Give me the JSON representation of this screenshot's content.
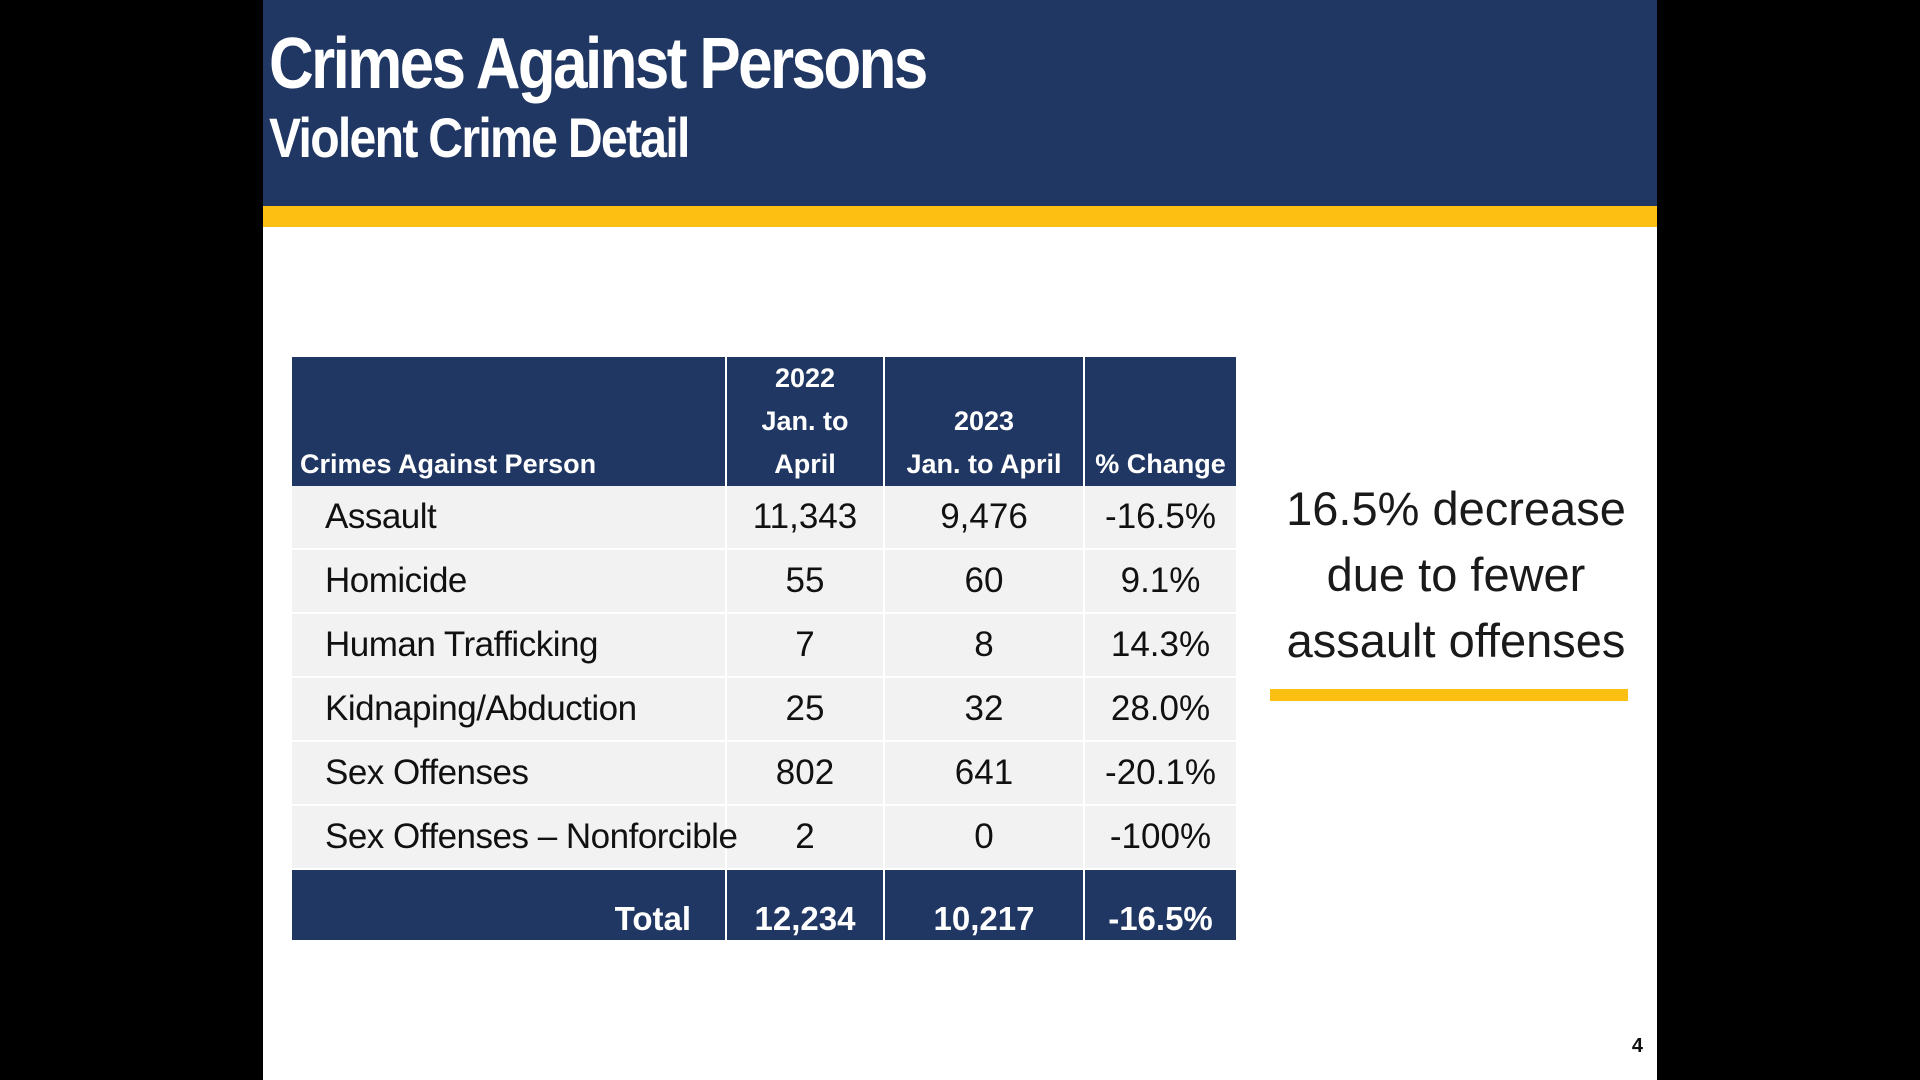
{
  "slide": {
    "title": "Crimes Against Persons",
    "subtitle": "Violent Crime Detail",
    "page_number": "4",
    "colors": {
      "navy": "#213763",
      "gold": "#fcbf12",
      "row_background": "#f2f2f2"
    }
  },
  "table": {
    "headers": {
      "category": "Crimes Against Person",
      "year_2022": "2022",
      "period_2022_line1": "Jan. to",
      "period_2022_line2": "April",
      "year_2023": "2023",
      "period_2023": "Jan. to April",
      "change": "% Change"
    },
    "rows": [
      {
        "label": "Assault",
        "y2022": "11,343",
        "y2023": "9,476",
        "change": "-16.5%"
      },
      {
        "label": "Homicide",
        "y2022": "55",
        "y2023": "60",
        "change": "9.1%"
      },
      {
        "label": "Human Trafficking",
        "y2022": "7",
        "y2023": "8",
        "change": "14.3%"
      },
      {
        "label": "Kidnaping/Abduction",
        "y2022": "25",
        "y2023": "32",
        "change": "28.0%"
      },
      {
        "label": "Sex Offenses",
        "y2022": "802",
        "y2023": "641",
        "change": "-20.1%"
      },
      {
        "label": "Sex Offenses – Nonforcible",
        "y2022": "2",
        "y2023": "0",
        "change": "-100%"
      }
    ],
    "total": {
      "label": "Total",
      "y2022": "12,234",
      "y2023": "10,217",
      "change": "-16.5%"
    }
  },
  "callout": {
    "line1": "16.5% decrease",
    "line2": "due to fewer",
    "line3": "assault offenses"
  }
}
